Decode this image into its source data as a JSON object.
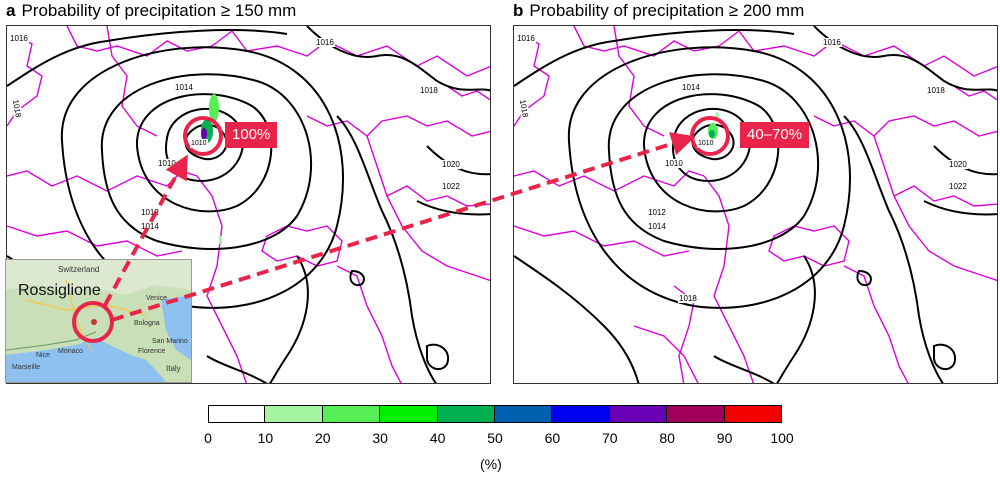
{
  "panels": [
    {
      "letter": "a",
      "title": "Probability of precipitation ≥ 150 mm",
      "probability": "100%"
    },
    {
      "letter": "b",
      "title": "Probability of precipitation ≥ 200 mm",
      "probability": "40–70%"
    }
  ],
  "isobars": {
    "a": [
      "1016",
      "1014",
      "1018",
      "1016",
      "1018",
      "1010",
      "1012",
      "1014",
      "1020",
      "1022"
    ],
    "b": [
      "1016",
      "1014",
      "1018",
      "1016",
      "1018",
      "1010",
      "1012",
      "1014",
      "1020",
      "1022",
      "1018"
    ]
  },
  "inset": {
    "place": "Rossiglione",
    "labels": [
      "Switzerland",
      "Venice",
      "Bologna",
      "Monaco",
      "Florence",
      "San Marino",
      "Italy",
      "Marseille",
      "Nice"
    ]
  },
  "colorbar": {
    "ticks": [
      "0",
      "10",
      "20",
      "30",
      "40",
      "50",
      "60",
      "70",
      "80",
      "90",
      "100"
    ],
    "colors": [
      "#ffffff",
      "#a5f5a0",
      "#55ee55",
      "#00ee00",
      "#00b050",
      "#0060b0",
      "#0000f0",
      "#6a00b5",
      "#a0005a",
      "#f50000"
    ],
    "unit": "(%)"
  },
  "colors": {
    "coastline": "#dd00dd",
    "isobar": "#000000",
    "highlight": "#e8244a"
  }
}
